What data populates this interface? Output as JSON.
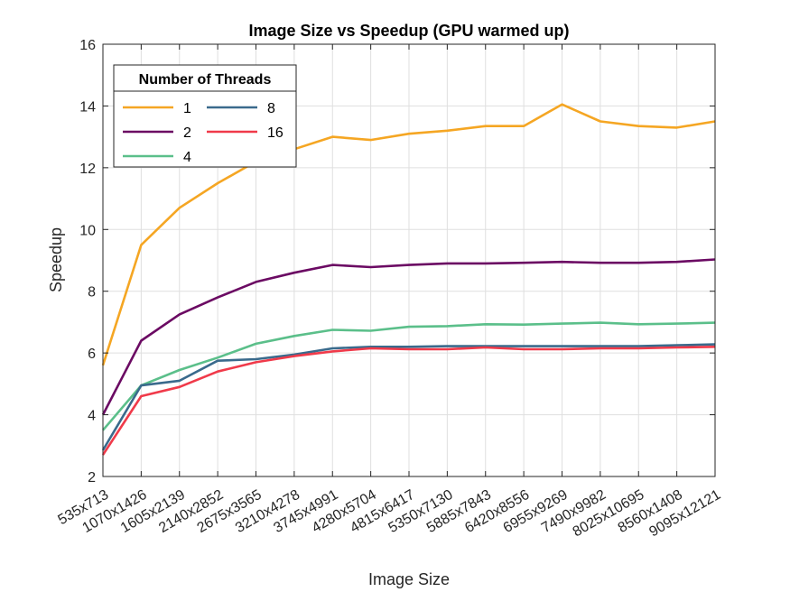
{
  "chart_data": {
    "type": "line",
    "title": "Image Size vs Speedup (GPU warmed up)",
    "xlabel": "Image Size",
    "ylabel": "Speedup",
    "ylim": [
      2,
      16
    ],
    "yticks": [
      "2",
      "4",
      "6",
      "8",
      "10",
      "12",
      "14",
      "16"
    ],
    "grid": true,
    "legend": {
      "title": "Number of Threads",
      "placement": "top-left"
    },
    "categories": [
      "535x713",
      "1070x1426",
      "1605x2139",
      "2140x2852",
      "2675x3565",
      "3210x4278",
      "3745x4991",
      "4280x5704",
      "4815x6417",
      "5350x7130",
      "5885x7843",
      "6420x8556",
      "6955x9269",
      "7490x9982",
      "8025x10695",
      "8560x1408",
      "9095x12121"
    ],
    "series": [
      {
        "name": "1",
        "color": "#F5A623",
        "values": [
          5.6,
          9.5,
          10.7,
          11.5,
          12.2,
          12.6,
          13.0,
          12.9,
          13.1,
          13.2,
          13.35,
          13.35,
          14.05,
          13.5,
          13.35,
          13.3,
          13.5
        ]
      },
      {
        "name": "2",
        "color": "#6B0A63",
        "values": [
          4.0,
          6.4,
          7.25,
          7.8,
          8.3,
          8.6,
          8.85,
          8.78,
          8.85,
          8.9,
          8.9,
          8.92,
          8.95,
          8.92,
          8.92,
          8.95,
          9.03
        ]
      },
      {
        "name": "4",
        "color": "#5BBF8A",
        "values": [
          3.5,
          4.95,
          5.45,
          5.85,
          6.3,
          6.55,
          6.75,
          6.72,
          6.85,
          6.87,
          6.93,
          6.92,
          6.95,
          6.98,
          6.93,
          6.95,
          6.98
        ]
      },
      {
        "name": "8",
        "color": "#3A6A8C",
        "values": [
          2.85,
          4.95,
          5.1,
          5.75,
          5.8,
          5.95,
          6.15,
          6.2,
          6.2,
          6.22,
          6.22,
          6.22,
          6.22,
          6.22,
          6.22,
          6.25,
          6.28
        ]
      },
      {
        "name": "16",
        "color": "#F03A4A",
        "values": [
          2.7,
          4.6,
          4.9,
          5.4,
          5.7,
          5.9,
          6.05,
          6.15,
          6.12,
          6.12,
          6.18,
          6.12,
          6.12,
          6.15,
          6.15,
          6.18,
          6.2
        ]
      }
    ]
  }
}
